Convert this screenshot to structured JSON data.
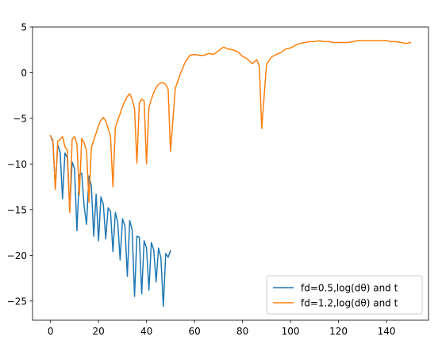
{
  "chart_data": {
    "type": "line",
    "title": "",
    "xlabel": "",
    "ylabel": "",
    "xlim": [
      -7.5,
      157.5
    ],
    "ylim": [
      -27.1,
      5.0
    ],
    "xticks": [
      0,
      20,
      40,
      60,
      80,
      100,
      120,
      140
    ],
    "yticks": [
      5,
      0,
      -5,
      -10,
      -15,
      -20,
      -25
    ],
    "tick_labels_x": [
      "0",
      "20",
      "40",
      "60",
      "80",
      "100",
      "120",
      "140"
    ],
    "tick_labels_y": [
      "5",
      "0",
      "−5",
      "−10",
      "−15",
      "−20",
      "−25"
    ],
    "grid": false,
    "legend_position": "lower-right",
    "series": [
      {
        "name": "fd=0.5,log(dθ) and t",
        "color": "#1f77b4",
        "x": [
          0,
          1,
          2,
          3,
          4,
          5,
          6,
          7,
          8,
          9,
          10,
          11,
          12,
          13,
          14,
          15,
          16,
          17,
          18,
          19,
          20,
          21,
          22,
          23,
          24,
          25,
          26,
          27,
          28,
          29,
          30,
          31,
          32,
          33,
          34,
          35,
          36,
          37,
          38,
          39,
          40,
          41,
          42,
          43,
          44,
          45,
          46,
          47,
          48,
          49,
          50
        ],
        "y": [
          -6.9,
          -7.6,
          -12.6,
          -7.9,
          -8.7,
          -13.8,
          -8.8,
          -9.3,
          -15.0,
          -9.8,
          -10.5,
          -17.3,
          -11.2,
          -11.0,
          -14.6,
          -16.6,
          -11.3,
          -12.4,
          -17.9,
          -13.3,
          -18.4,
          -13.6,
          -14.4,
          -18.2,
          -14.8,
          -15.2,
          -19.6,
          -15.3,
          -16.4,
          -20.5,
          -16.0,
          -16.8,
          -22.3,
          -16.2,
          -17.2,
          -24.5,
          -17.9,
          -18.0,
          -24.2,
          -18.4,
          -19.2,
          -23.8,
          -18.6,
          -19.4,
          -22.9,
          -19.2,
          -20.3,
          -25.6,
          -19.8,
          -20.2,
          -19.5
        ]
      },
      {
        "name": "fd=1.2,log(dθ) and t",
        "color": "#ff7f0e",
        "x": [
          0,
          1,
          2,
          3,
          4,
          5,
          6,
          7,
          8,
          9,
          10,
          11,
          12,
          13,
          14,
          15,
          16,
          17,
          18,
          19,
          20,
          21,
          22,
          23,
          24,
          25,
          26,
          27,
          28,
          29,
          30,
          31,
          32,
          33,
          34,
          35,
          36,
          37,
          38,
          39,
          40,
          41,
          42,
          43,
          44,
          45,
          46,
          47,
          48,
          49,
          50,
          52,
          54,
          56,
          58,
          60,
          62,
          64,
          66,
          68,
          70,
          72,
          74,
          76,
          78,
          80,
          82,
          84,
          86,
          87,
          88,
          90,
          92,
          94,
          96,
          98,
          100,
          102,
          104,
          106,
          108,
          110,
          112,
          114,
          116,
          118,
          120,
          122,
          124,
          126,
          128,
          130,
          132,
          134,
          136,
          138,
          140,
          142,
          144,
          146,
          148,
          150
        ],
        "y": [
          -6.9,
          -7.4,
          -12.8,
          -7.5,
          -7.3,
          -7.0,
          -8.1,
          -8.5,
          -15.3,
          -7.3,
          -7.0,
          -7.8,
          -13.4,
          -7.2,
          -7.7,
          -8.5,
          -14.2,
          -8.2,
          -7.4,
          -6.6,
          -5.8,
          -5.2,
          -4.9,
          -5.3,
          -6.1,
          -7.0,
          -12.5,
          -6.0,
          -5.2,
          -4.5,
          -3.7,
          -3.1,
          -2.6,
          -2.3,
          -2.9,
          -3.9,
          -9.9,
          -3.3,
          -2.9,
          -3.1,
          -10.0,
          -3.8,
          -2.9,
          -2.2,
          -1.6,
          -1.3,
          -1.1,
          -1.1,
          -1.3,
          -1.8,
          -8.6,
          -1.7,
          -0.2,
          1.1,
          1.9,
          2.0,
          1.9,
          1.9,
          2.1,
          2.0,
          2.4,
          2.8,
          2.6,
          2.5,
          2.3,
          1.8,
          1.5,
          1.0,
          1.4,
          0.7,
          -6.1,
          0.9,
          1.7,
          2.0,
          2.2,
          2.6,
          2.7,
          3.0,
          3.2,
          3.3,
          3.4,
          3.4,
          3.5,
          3.4,
          3.4,
          3.3,
          3.3,
          3.3,
          3.3,
          3.4,
          3.5,
          3.5,
          3.5,
          3.5,
          3.5,
          3.5,
          3.5,
          3.4,
          3.4,
          3.3,
          3.2,
          3.3
        ]
      }
    ]
  }
}
